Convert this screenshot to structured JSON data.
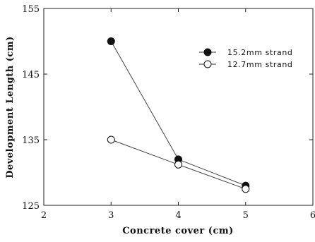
{
  "chart_data": {
    "type": "line",
    "xlabel": "Concrete cover (cm)",
    "ylabel": "Development Length (cm)",
    "xlim": [
      2,
      6
    ],
    "ylim": [
      125,
      155
    ],
    "x_ticks": [
      "2",
      "3",
      "4",
      "5",
      "6"
    ],
    "y_ticks": [
      "125",
      "135",
      "145",
      "155"
    ],
    "grid": false,
    "legend_position": "top-right",
    "series": [
      {
        "name": "15.2mm strand",
        "marker": "filled-circle",
        "color": "#111111",
        "x": [
          3,
          4,
          5
        ],
        "y": [
          150,
          132,
          128
        ]
      },
      {
        "name": "12.7mm strand",
        "marker": "open-circle",
        "color": "#111111",
        "x": [
          3,
          4,
          5
        ],
        "y": [
          135,
          131.2,
          127.5
        ]
      }
    ]
  }
}
